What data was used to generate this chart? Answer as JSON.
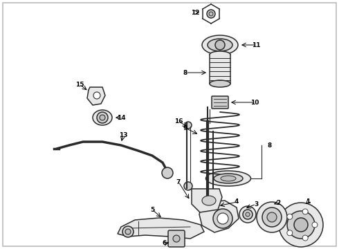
{
  "background_color": "#ffffff",
  "border_color": "#bbbbbb",
  "line_color": "#2a2a2a",
  "fig_width": 4.9,
  "fig_height": 3.6,
  "dpi": 100,
  "label_fontsize": 6.5,
  "lw_part": 1.1,
  "lw_spring": 1.3,
  "lw_thick": 2.0,
  "part_face": "#e8e8e8",
  "part_face2": "#d0d0d0",
  "part_face3": "#c0c0c0",
  "white": "#ffffff"
}
